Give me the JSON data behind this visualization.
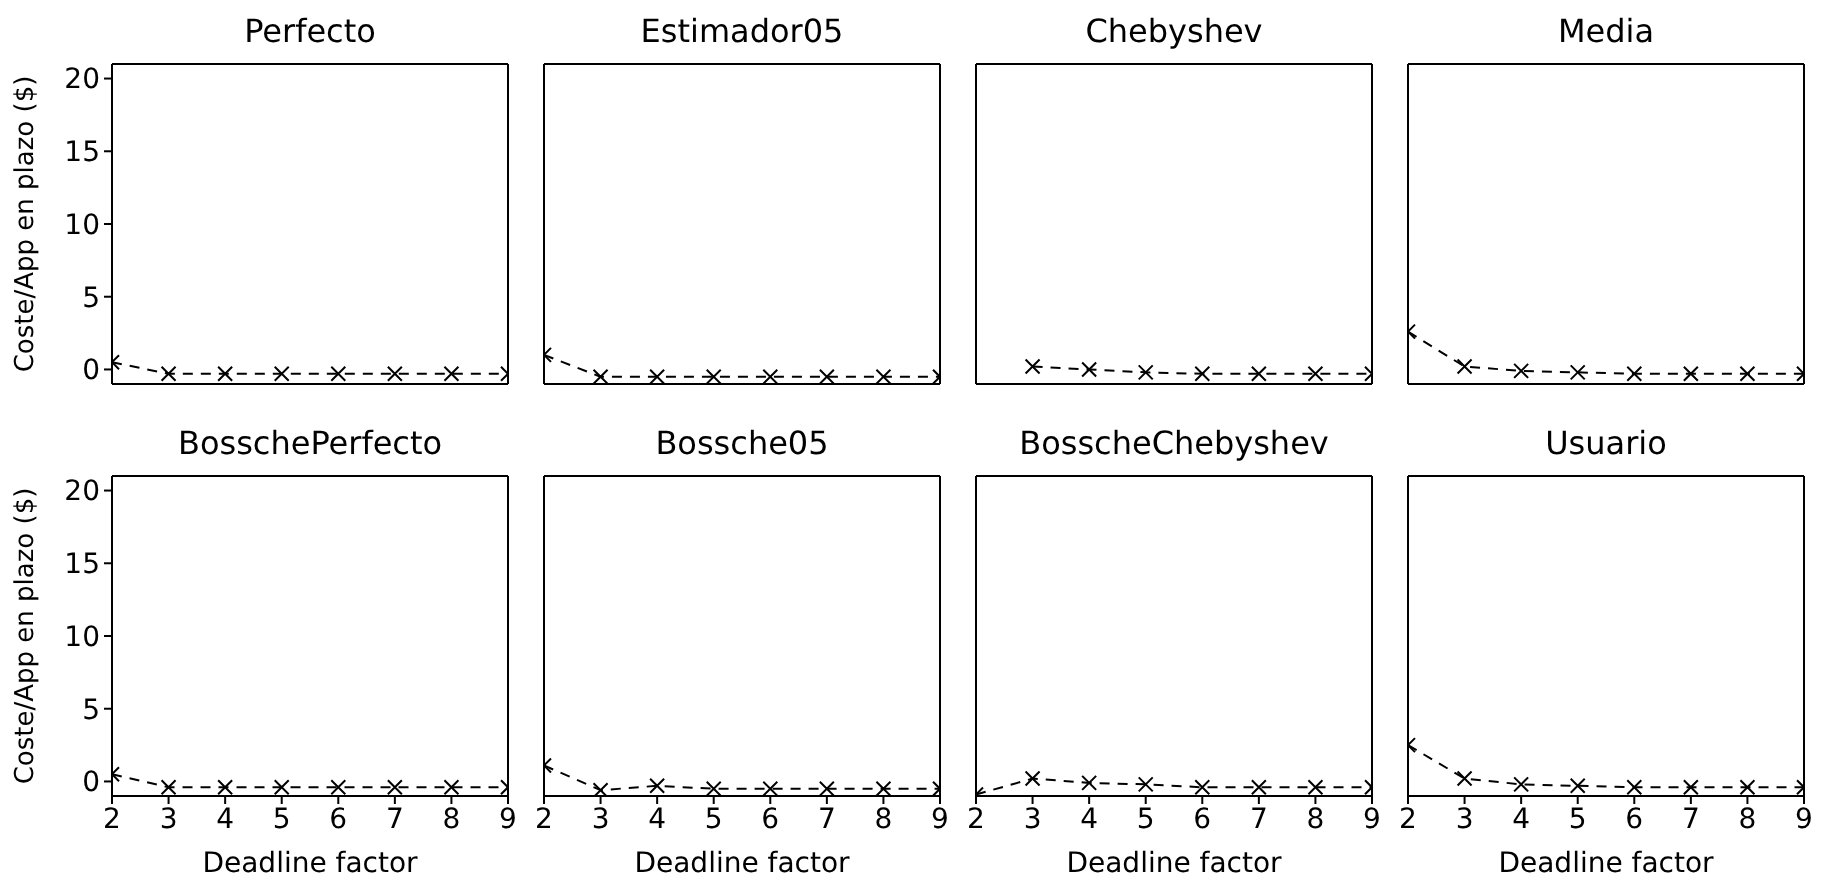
{
  "chart_data": [
    {
      "type": "line",
      "title": "Perfecto",
      "ylabel": "Coste/App en plazo ($)",
      "x": [
        2,
        3,
        4,
        5,
        6,
        7,
        8,
        9
      ],
      "xlim": [
        2,
        9
      ],
      "ylim": [
        -1,
        21
      ],
      "xticks": [
        2,
        3,
        4,
        5,
        6,
        7,
        8,
        9
      ],
      "yticks": [
        0,
        5,
        10,
        15,
        20
      ],
      "tick_labels": "y",
      "marker": "cross",
      "line_style": "dashed",
      "series": [
        {
          "color": "#000000",
          "values": [
            0.5,
            -0.3,
            -0.3,
            -0.3,
            -0.3,
            -0.3,
            -0.3,
            -0.3
          ]
        }
      ]
    },
    {
      "type": "line",
      "title": "Estimador05",
      "x": [
        2,
        3,
        4,
        5,
        6,
        7,
        8,
        9
      ],
      "xlim": [
        2,
        9
      ],
      "ylim": [
        -1,
        21
      ],
      "xticks": [
        2,
        3,
        4,
        5,
        6,
        7,
        8,
        9
      ],
      "yticks": [
        0,
        5,
        10,
        15,
        20
      ],
      "tick_labels": false,
      "marker": "cross",
      "line_style": "dashed",
      "series": [
        {
          "color": "#000000",
          "values": [
            1.0,
            -0.5,
            -0.5,
            -0.5,
            -0.5,
            -0.5,
            -0.5,
            -0.5
          ]
        }
      ]
    },
    {
      "type": "line",
      "title": "Chebyshev",
      "x": [
        3,
        4,
        5,
        6,
        7,
        8,
        9
      ],
      "xlim": [
        2,
        9
      ],
      "ylim": [
        -1,
        21
      ],
      "xticks": [
        2,
        3,
        4,
        5,
        6,
        7,
        8,
        9
      ],
      "yticks": [
        0,
        5,
        10,
        15,
        20
      ],
      "tick_labels": false,
      "marker": "cross",
      "line_style": "dashed",
      "series": [
        {
          "color": "#000000",
          "values": [
            0.2,
            0,
            -0.2,
            -0.3,
            -0.3,
            -0.3,
            -0.3
          ]
        }
      ]
    },
    {
      "type": "line",
      "title": "Media",
      "x": [
        2,
        3,
        4,
        5,
        6,
        7,
        8,
        9
      ],
      "xlim": [
        2,
        9
      ],
      "ylim": [
        -1,
        21
      ],
      "xticks": [
        2,
        3,
        4,
        5,
        6,
        7,
        8,
        9
      ],
      "yticks": [
        0,
        5,
        10,
        15,
        20
      ],
      "tick_labels": false,
      "marker": "cross",
      "line_style": "dashed",
      "series": [
        {
          "color": "#000000",
          "values": [
            2.6,
            0.2,
            -0.1,
            -0.2,
            -0.3,
            -0.3,
            -0.3,
            -0.3
          ]
        }
      ]
    },
    {
      "type": "line",
      "title": "BosschePerfecto",
      "xlabel": "Deadline factor",
      "ylabel": "Coste/App en plazo ($)",
      "x": [
        2,
        3,
        4,
        5,
        6,
        7,
        8,
        9
      ],
      "xlim": [
        2,
        9
      ],
      "ylim": [
        -1,
        21
      ],
      "xticks": [
        2,
        3,
        4,
        5,
        6,
        7,
        8,
        9
      ],
      "yticks": [
        0,
        5,
        10,
        15,
        20
      ],
      "marker": "cross",
      "line_style": "dashed",
      "series": [
        {
          "color": "#000000",
          "values": [
            0.5,
            -0.4,
            -0.4,
            -0.4,
            -0.4,
            -0.4,
            -0.4,
            -0.4
          ]
        }
      ]
    },
    {
      "type": "line",
      "title": "Bossche05",
      "xlabel": "Deadline factor",
      "x": [
        2,
        3,
        4,
        5,
        6,
        7,
        8,
        9
      ],
      "xlim": [
        2,
        9
      ],
      "ylim": [
        -1,
        21
      ],
      "xticks": [
        2,
        3,
        4,
        5,
        6,
        7,
        8,
        9
      ],
      "yticks": [
        0,
        5,
        10,
        15,
        20
      ],
      "tick_labels": "x",
      "marker": "cross",
      "line_style": "dashed",
      "series": [
        {
          "color": "#000000",
          "values": [
            1.1,
            -0.6,
            -0.3,
            -0.5,
            -0.5,
            -0.5,
            -0.5,
            -0.5
          ]
        }
      ]
    },
    {
      "type": "line",
      "title": "BosscheChebyshev",
      "xlabel": "Deadline factor",
      "x": [
        2,
        3,
        4,
        5,
        6,
        7,
        8,
        9
      ],
      "xlim": [
        2,
        9
      ],
      "ylim": [
        -1,
        21
      ],
      "xticks": [
        2,
        3,
        4,
        5,
        6,
        7,
        8,
        9
      ],
      "yticks": [
        0,
        5,
        10,
        15,
        20
      ],
      "tick_labels": "x",
      "marker": "cross",
      "line_style": "dashed",
      "series": [
        {
          "color": "#000000",
          "values": [
            -0.9,
            0.2,
            -0.1,
            -0.2,
            -0.4,
            -0.4,
            -0.4,
            -0.4
          ]
        }
      ]
    },
    {
      "type": "line",
      "title": "Usuario",
      "xlabel": "Deadline factor",
      "x": [
        2,
        3,
        4,
        5,
        6,
        7,
        8,
        9
      ],
      "xlim": [
        2,
        9
      ],
      "ylim": [
        -1,
        21
      ],
      "xticks": [
        2,
        3,
        4,
        5,
        6,
        7,
        8,
        9
      ],
      "yticks": [
        0,
        5,
        10,
        15,
        20
      ],
      "tick_labels": "x",
      "marker": "cross",
      "line_style": "dashed",
      "series": [
        {
          "color": "#000000",
          "values": [
            2.5,
            0.2,
            -0.2,
            -0.3,
            -0.4,
            -0.4,
            -0.4,
            -0.4
          ]
        }
      ]
    }
  ]
}
